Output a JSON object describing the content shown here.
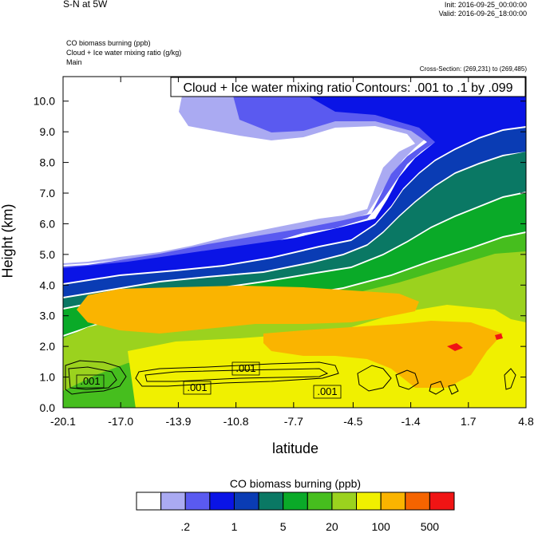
{
  "header": {
    "title": "S-N at 5W",
    "init": "Init: 2016-09-25_00:00:00",
    "valid": "Valid: 2016-09-26_18:00:00"
  },
  "subtitles": [
    "CO biomass burning   (ppb)",
    "Cloud + Ice water mixing ratio   (g/kg)",
    "Main"
  ],
  "cross_section": "Cross-Section: (269,231) to (269,485)",
  "colors": {
    "levels": [
      "#ffffff",
      "#aaaaf2",
      "#5a5af0",
      "#0a14e6",
      "#0a3cb4",
      "#0a7864",
      "#0aaa28",
      "#46be1e",
      "#9bd21e",
      "#f0f000",
      "#fab400",
      "#f56400",
      "#f01414"
    ],
    "contour": "#000000"
  },
  "chart_data": {
    "type": "heatmap",
    "title": "Cloud + Ice water mixing ratio Contours: .001 to .1 by .099",
    "xlabel": "latitude",
    "ylabel": "Height (km)",
    "x_ticks": [
      "-20.1",
      "-17.0",
      "-13.9",
      "-10.8",
      "-7.7",
      "-4.5",
      "-1.4",
      "1.7",
      "4.8"
    ],
    "y_ticks": [
      "0.0",
      "1.0",
      "2.0",
      "3.0",
      "4.0",
      "5.0",
      "6.0",
      "7.0",
      "8.0",
      "9.0",
      "10.0"
    ],
    "xlim": [
      -20.1,
      4.8
    ],
    "ylim": [
      0,
      10.8
    ],
    "contour_labels": [
      ".001",
      ".001",
      ".001",
      ".001"
    ],
    "colorbar": {
      "title": "CO biomass burning  (ppb)",
      "labels": [
        ".2",
        "1",
        "5",
        "20",
        "100",
        "500"
      ]
    }
  }
}
